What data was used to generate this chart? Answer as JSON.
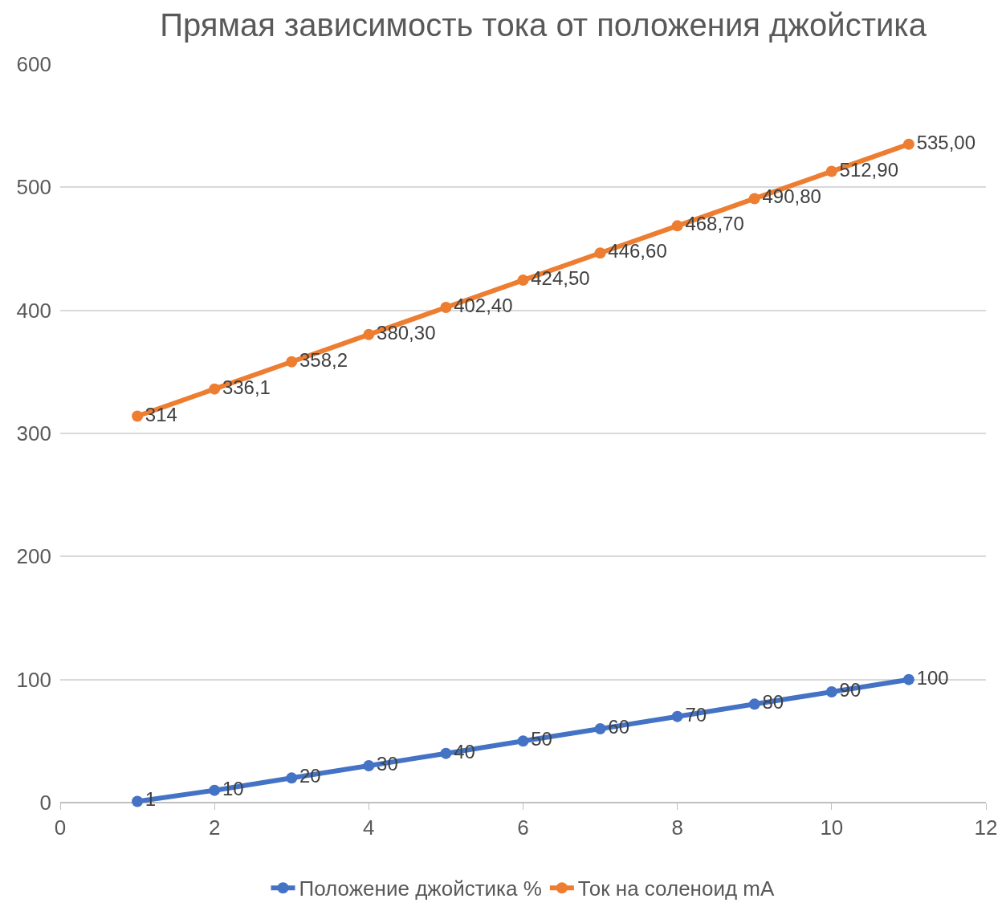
{
  "chart_data": {
    "type": "line",
    "title": "Прямая зависимость тока от положения джойстика",
    "x": [
      1,
      2,
      3,
      4,
      5,
      6,
      7,
      8,
      9,
      10,
      11
    ],
    "series": [
      {
        "name": "Положение джойстика %",
        "color": "#4472c4",
        "values": [
          1,
          10,
          20,
          30,
          40,
          50,
          60,
          70,
          80,
          90,
          100
        ],
        "value_labels": [
          "1",
          "10",
          "20",
          "30",
          "40",
          "50",
          "60",
          "70",
          "80",
          "90",
          "100"
        ]
      },
      {
        "name": "Ток на соленоид mA",
        "color": "#ed7d31",
        "values": [
          314,
          336.1,
          358.2,
          380.3,
          402.4,
          424.5,
          446.6,
          468.7,
          490.8,
          512.9,
          535
        ],
        "value_labels": [
          "314",
          "336,1",
          "358,2",
          "380,30",
          "402,40",
          "424,50",
          "446,60",
          "468,70",
          "490,80",
          "512,90",
          "535,00"
        ]
      }
    ],
    "xlim": [
      0,
      12
    ],
    "xticks": [
      0,
      2,
      4,
      6,
      8,
      10,
      12
    ],
    "ylim": [
      0,
      600
    ],
    "yticks": [
      0,
      100,
      200,
      300,
      400,
      500,
      600
    ],
    "grid": "y",
    "legend": "bottom",
    "marker": "circle",
    "line_style": "solid"
  }
}
